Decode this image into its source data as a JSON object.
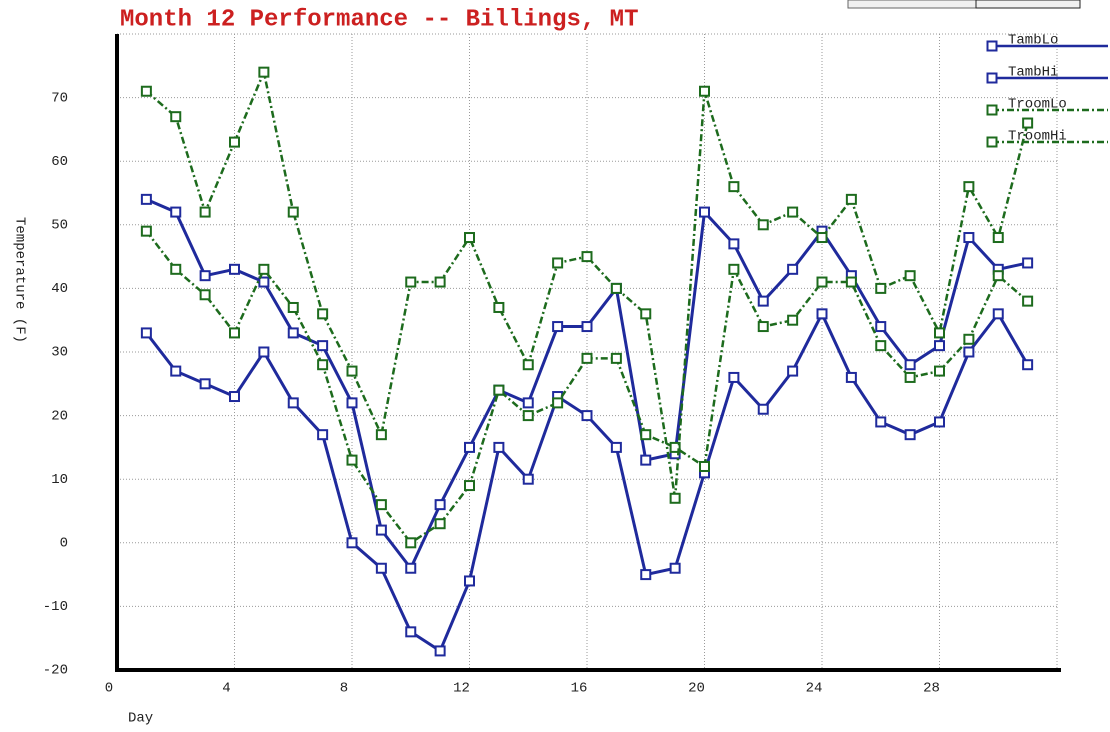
{
  "chart_data": {
    "type": "line",
    "title": "Month 12 Performance -- Billings, MT",
    "x_label": "Day",
    "y_label": "Temperature (F)",
    "x": [
      1,
      2,
      3,
      4,
      5,
      6,
      7,
      8,
      9,
      10,
      11,
      12,
      13,
      14,
      15,
      16,
      17,
      18,
      19,
      20,
      21,
      22,
      23,
      24,
      25,
      26,
      27,
      28,
      29,
      30,
      31
    ],
    "series": [
      {
        "name": "TambLo",
        "color": "#1f2a9c",
        "dash": false,
        "values": [
          33,
          27,
          25,
          23,
          30,
          22,
          17,
          0,
          -4,
          -14,
          -17,
          -6,
          15,
          10,
          23,
          20,
          15,
          -5,
          -4,
          11,
          26,
          21,
          27,
          36,
          26,
          19,
          17,
          19,
          30,
          36,
          28
        ]
      },
      {
        "name": "TambHi",
        "color": "#1f2a9c",
        "dash": false,
        "values": [
          54,
          52,
          42,
          43,
          41,
          33,
          31,
          22,
          2,
          -4,
          6,
          15,
          24,
          22,
          34,
          34,
          40,
          13,
          14,
          52,
          47,
          38,
          43,
          49,
          42,
          34,
          28,
          31,
          48,
          43,
          44
        ]
      },
      {
        "name": "TroomLo",
        "color": "#1d6b1d",
        "dash": true,
        "values": [
          49,
          43,
          39,
          33,
          43,
          37,
          28,
          13,
          6,
          0,
          3,
          9,
          24,
          20,
          22,
          29,
          29,
          17,
          15,
          12,
          43,
          34,
          35,
          41,
          41,
          31,
          26,
          27,
          32,
          42,
          38
        ]
      },
      {
        "name": "TroomHi",
        "color": "#1d6b1d",
        "dash": true,
        "values": [
          71,
          67,
          52,
          63,
          74,
          52,
          36,
          27,
          17,
          41,
          41,
          48,
          37,
          28,
          44,
          45,
          40,
          36,
          7,
          71,
          56,
          50,
          52,
          48,
          54,
          40,
          42,
          33,
          56,
          48,
          66
        ]
      }
    ],
    "xlim": [
      0,
      32
    ],
    "ylim": [
      -20,
      80
    ],
    "xticks": [
      0,
      4,
      8,
      12,
      16,
      20,
      24,
      28
    ],
    "yticks": [
      -20,
      -10,
      0,
      10,
      20,
      30,
      40,
      50,
      60,
      70
    ],
    "grid": true,
    "legend": "upper right"
  }
}
